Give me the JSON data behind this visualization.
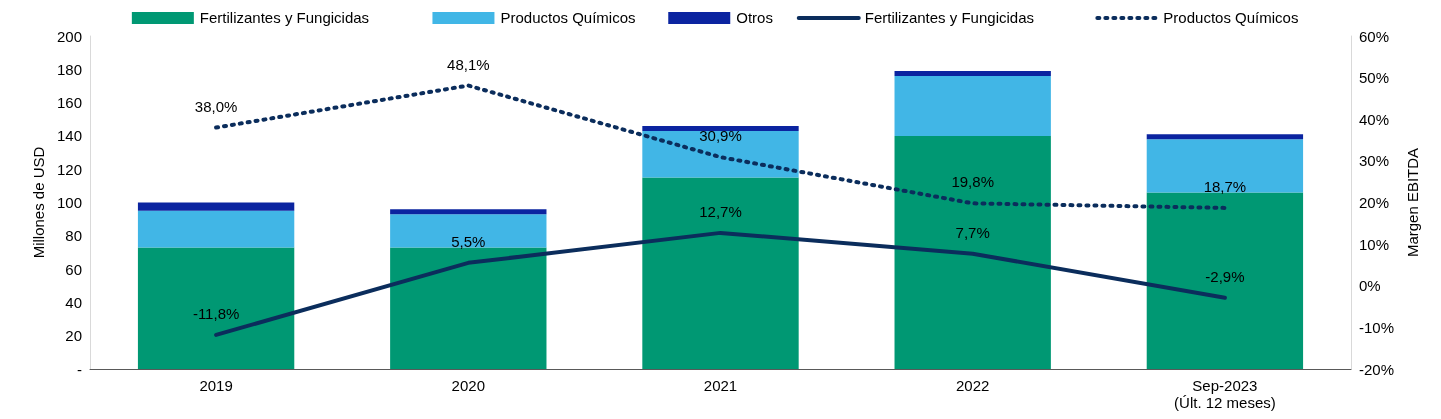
{
  "chart_data": {
    "type": "bar",
    "stacked": true,
    "ylabel": "Millones de USD",
    "y2label": "Margen EBITDA",
    "categories": [
      "2019",
      "2020",
      "2021",
      "2022",
      "Sep-2023\n(Últ. 12 meses)"
    ],
    "series": [
      {
        "name": "Fertilizantes y Fungicidas",
        "color": "#009873",
        "values": [
          73,
          73,
          115,
          140,
          106
        ]
      },
      {
        "name": "Productos Químicos",
        "color": "#41b6e6",
        "values": [
          22,
          20,
          28,
          36,
          32
        ]
      },
      {
        "name": "Otros",
        "color": "#0b24a0",
        "values": [
          5,
          3,
          3,
          3,
          3
        ]
      },
      {
        "name": "Fertilizantes y Fungicidas",
        "type": "line",
        "axis": "y2",
        "color": "#0b2d5c",
        "line_style": "solid",
        "values": [
          -11.8,
          5.5,
          12.7,
          7.7,
          -2.9
        ],
        "value_labels": [
          "-11,8%",
          "5,5%",
          "12,7%",
          "7,7%",
          "-2,9%"
        ]
      },
      {
        "name": "Productos Químicos",
        "type": "line",
        "axis": "y2",
        "color": "#0b2d5c",
        "line_style": "dotted",
        "values": [
          38.0,
          48.1,
          30.9,
          19.8,
          18.7
        ],
        "value_labels": [
          "38,0%",
          "48,1%",
          "30,9%",
          "19,8%",
          "18,7%"
        ]
      }
    ],
    "ylim": [
      0,
      200
    ],
    "yticks": [
      {
        "value": 0,
        "label": "-"
      },
      20,
      40,
      60,
      80,
      100,
      120,
      140,
      160,
      180,
      200
    ],
    "y2lim": [
      -20,
      60
    ],
    "y2ticks": [
      {
        "value": -20,
        "label": "-20%"
      },
      {
        "value": -10,
        "label": "-10%"
      },
      {
        "value": 0,
        "label": "0%"
      },
      {
        "value": 10,
        "label": "10%"
      },
      {
        "value": 20,
        "label": "20%"
      },
      {
        "value": 30,
        "label": "30%"
      },
      {
        "value": 40,
        "label": "40%"
      },
      {
        "value": 50,
        "label": "50%"
      },
      {
        "value": 60,
        "label": "60%"
      }
    ],
    "grid": false,
    "legend": "top",
    "marker": "none"
  }
}
